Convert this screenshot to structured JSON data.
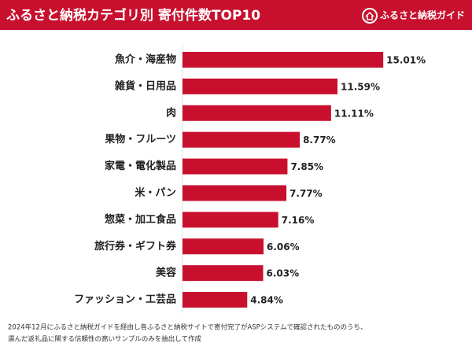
{
  "chart_data": {
    "type": "bar",
    "orientation": "horizontal",
    "title": "ふるさと納税カテゴリ別 寄付件数TOP10",
    "brand": "ふるさと納税ガイド",
    "categories": [
      "魚介・海産物",
      "雑貨・日用品",
      "肉",
      "果物・フルーツ",
      "家電・電化製品",
      "米・パン",
      "惣菜・加工食品",
      "旅行券・ギフト券",
      "美容",
      "ファッション・工芸品"
    ],
    "values": [
      15.01,
      11.59,
      11.11,
      8.77,
      7.85,
      7.77,
      7.16,
      6.06,
      6.03,
      4.84
    ],
    "value_labels": [
      "15.01%",
      "11.59%",
      "11.11%",
      "8.77%",
      "7.85%",
      "7.77%",
      "7.16%",
      "6.06%",
      "6.03%",
      "4.84%"
    ],
    "color": "#c8102e",
    "xlim": [
      0,
      18
    ],
    "footnote": [
      "2024年12月にふるさと納税ガイドを経由し各ふるさと納税サイトで寄付完了がASPシステムで確認されたもののうち、",
      "選んだ返礼品に関する信頼性の高いサンプルのみを抽出して作成"
    ]
  }
}
